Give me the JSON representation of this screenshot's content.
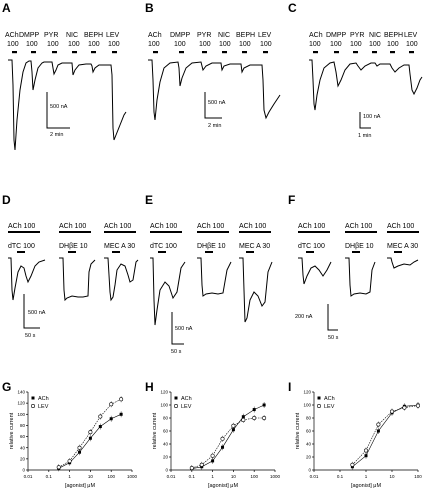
{
  "panels": [
    {
      "id": "A",
      "agonists": [
        "ACh",
        "DMPP",
        "PYR",
        "NIC",
        "BEPH",
        "LEV"
      ],
      "concs": [
        "100",
        "100",
        "100",
        "100",
        "100",
        "100"
      ],
      "scale_y": "500 nA",
      "scale_x": "2 min"
    },
    {
      "id": "B",
      "agonists": [
        "ACh",
        "DMPP",
        "PYR",
        "NIC",
        "BEPH",
        "LEV"
      ],
      "concs": [
        "100",
        "100",
        "100",
        "100",
        "100",
        "100"
      ],
      "scale_y": "500 nA",
      "scale_x": "2 min"
    },
    {
      "id": "C",
      "agonists": [
        "ACh",
        "DMPP",
        "PYR",
        "NIC",
        "BEPH",
        "LEV"
      ],
      "concs": [
        "100",
        "100",
        "100",
        "100",
        "100",
        "100"
      ],
      "scale_y": "100 nA",
      "scale_x": "1 min"
    },
    {
      "id": "D",
      "top_label": "ACh 100",
      "sub_labels": [
        "dTC 100",
        "DHβE 10",
        "MEC A 30"
      ],
      "scale_y": "500 nA",
      "scale_x": "50 s"
    },
    {
      "id": "E",
      "top_label": "ACh 100",
      "sub_labels": [
        "dTC 100",
        "DHβE 10",
        "MEC A 30"
      ],
      "scale_y": "500 nA",
      "scale_x": "50 s"
    },
    {
      "id": "F",
      "top_label": "ACh 100",
      "sub_labels": [
        "dTC 100",
        "DHβE 10",
        "MEC A 30"
      ],
      "scale_y": "200 nA",
      "scale_x": "50 s"
    }
  ],
  "chart_data": [
    {
      "id": "G",
      "type": "scatter",
      "ylabel": "relative current",
      "xlabel": "[agonist] μM",
      "xscale": "log",
      "xticks": [
        "0.01",
        "0.1",
        "1",
        "10",
        "100",
        "1000"
      ],
      "yticks": [
        "0",
        "20",
        "40",
        "60",
        "80",
        "100",
        "120",
        "140"
      ],
      "xlim": [
        0.01,
        1000
      ],
      "ylim": [
        0,
        140
      ],
      "legend": "top-left",
      "series": [
        {
          "name": "ACh",
          "marker": "filled-square",
          "x": [
            0.3,
            1,
            3,
            10,
            30,
            100,
            300
          ],
          "y": [
            3,
            13,
            32,
            57,
            78,
            92,
            100
          ]
        },
        {
          "name": "LEV",
          "marker": "open-circle",
          "x": [
            0.3,
            1,
            3,
            10,
            30,
            100,
            300
          ],
          "y": [
            5,
            16,
            40,
            68,
            96,
            118,
            127
          ]
        }
      ]
    },
    {
      "id": "H",
      "type": "scatter",
      "ylabel": "relative current",
      "xlabel": "[agonist] μM",
      "xscale": "log",
      "xticks": [
        "0.01",
        "0.1",
        "1",
        "10",
        "100",
        "1000"
      ],
      "yticks": [
        "0",
        "20",
        "40",
        "60",
        "80",
        "100",
        "120"
      ],
      "xlim": [
        0.01,
        1000
      ],
      "ylim": [
        0,
        120
      ],
      "legend": "top-left",
      "series": [
        {
          "name": "ACh",
          "marker": "filled-square",
          "x": [
            0.1,
            0.3,
            1,
            3,
            10,
            30,
            100,
            300
          ],
          "y": [
            2,
            5,
            14,
            35,
            62,
            82,
            93,
            100
          ]
        },
        {
          "name": "LEV",
          "marker": "open-circle",
          "x": [
            0.1,
            0.3,
            1,
            3,
            10,
            30,
            100,
            300
          ],
          "y": [
            3,
            8,
            22,
            48,
            68,
            77,
            80,
            80
          ]
        }
      ]
    },
    {
      "id": "I",
      "type": "scatter",
      "ylabel": "relative current",
      "xlabel": "[agonist] μM",
      "xscale": "log",
      "xticks": [
        "0.01",
        "0.1",
        "1",
        "10",
        "100"
      ],
      "yticks": [
        "0",
        "20",
        "40",
        "60",
        "80",
        "100",
        "120"
      ],
      "xlim": [
        0.01,
        100
      ],
      "ylim": [
        0,
        120
      ],
      "legend": "top-left",
      "series": [
        {
          "name": "ACh",
          "marker": "filled-square",
          "x": [
            0.3,
            1,
            3,
            10,
            30,
            100
          ],
          "y": [
            5,
            22,
            60,
            88,
            98,
            100
          ]
        },
        {
          "name": "LEV",
          "marker": "open-circle",
          "x": [
            0.3,
            1,
            3,
            10,
            30,
            100
          ],
          "y": [
            8,
            30,
            70,
            90,
            96,
            99
          ]
        }
      ]
    }
  ]
}
